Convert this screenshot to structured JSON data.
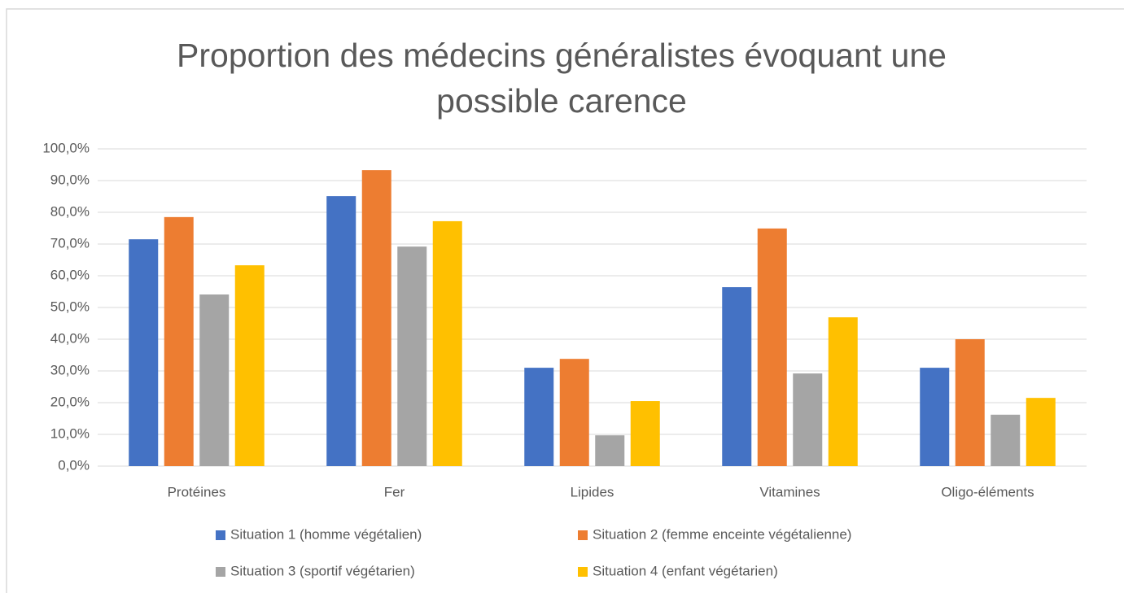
{
  "chart_data": {
    "type": "bar",
    "title": "Proportion des médecins généralistes évoquant une possible carence",
    "categories": [
      "Protéines",
      "Fer",
      "Lipides",
      "Vitamines",
      "Oligo-éléments"
    ],
    "series": [
      {
        "name": "Situation 1 (homme végétalien)",
        "color": "#4472c4",
        "values": [
          71.5,
          85.1,
          31.0,
          56.4,
          31.0
        ]
      },
      {
        "name": "Situation 2 (femme enceinte végétalienne)",
        "color": "#ed7d31",
        "values": [
          78.5,
          93.3,
          33.8,
          74.9,
          40.0
        ]
      },
      {
        "name": "Situation 3 (sportif végétarien)",
        "color": "#a5a5a5",
        "values": [
          54.1,
          69.2,
          9.7,
          29.2,
          16.2
        ]
      },
      {
        "name": "Situation 4 (enfant végétarien)",
        "color": "#ffc000",
        "values": [
          63.3,
          77.2,
          20.5,
          46.9,
          21.5
        ]
      }
    ],
    "ylim": [
      0,
      100
    ],
    "yticks": [
      {
        "value": 0,
        "label": "0,0%"
      },
      {
        "value": 10,
        "label": "10,0%"
      },
      {
        "value": 20,
        "label": "20,0%"
      },
      {
        "value": 30,
        "label": "30,0%"
      },
      {
        "value": 40,
        "label": "40,0%"
      },
      {
        "value": 50,
        "label": "50,0%"
      },
      {
        "value": 60,
        "label": "60,0%"
      },
      {
        "value": 70,
        "label": "70,0%"
      },
      {
        "value": 80,
        "label": "80,0%"
      },
      {
        "value": 90,
        "label": "90,0%"
      },
      {
        "value": 100,
        "label": "100,0%"
      }
    ],
    "grid": true,
    "legend": "bottom"
  }
}
